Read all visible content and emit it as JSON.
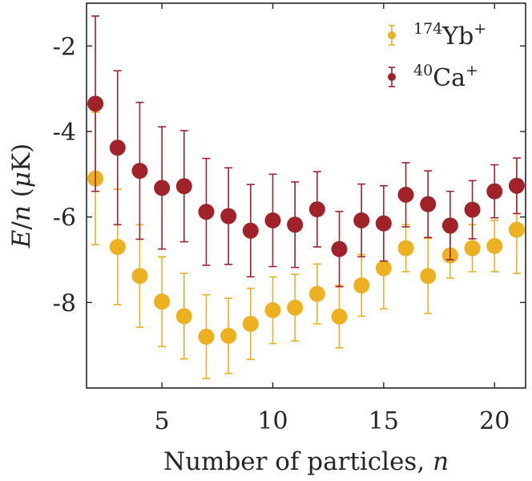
{
  "chart_data": {
    "type": "scatter",
    "title": "",
    "xlabel": "Number of particles, ",
    "xlabel_var": "n",
    "ylabel_parts": [
      "E",
      "/",
      "n",
      " (",
      "μ",
      "K)"
    ],
    "xlim": [
      1.6,
      21.4
    ],
    "ylim": [
      -10,
      -1
    ],
    "xticks": [
      5,
      10,
      15,
      20
    ],
    "xtick_labels": [
      "5",
      "10",
      "15",
      "20"
    ],
    "yticks": [
      -8,
      -6,
      -4,
      -2
    ],
    "ytick_labels": [
      "-8",
      "-6",
      "-4",
      "-2"
    ],
    "grid": false,
    "legend_position": "top-right",
    "series": [
      {
        "name": "174Yb+",
        "label_sup": "174",
        "label_main": "Yb",
        "label_charge": "+",
        "color": "#EDB120",
        "x": [
          2,
          3,
          4,
          5,
          6,
          7,
          8,
          9,
          10,
          11,
          12,
          13,
          14,
          15,
          16,
          17,
          18,
          19,
          20,
          21
        ],
        "y": [
          -5.1,
          -6.7,
          -7.38,
          -7.98,
          -8.32,
          -8.8,
          -8.78,
          -8.5,
          -8.18,
          -8.12,
          -7.8,
          -8.33,
          -7.6,
          -7.2,
          -6.73,
          -7.38,
          -6.9,
          -6.73,
          -6.68,
          -6.3
        ],
        "err": [
          1.55,
          1.35,
          1.2,
          1.05,
          1.0,
          0.98,
          0.88,
          0.83,
          0.78,
          0.78,
          0.7,
          0.73,
          0.72,
          0.95,
          0.55,
          0.88,
          0.53,
          0.55,
          0.6,
          1.02
        ]
      },
      {
        "name": "40Ca+",
        "label_sup": "40",
        "label_main": "Ca",
        "label_charge": "+",
        "color": "#A2222A",
        "x": [
          2,
          3,
          4,
          5,
          6,
          7,
          8,
          9,
          10,
          11,
          12,
          13,
          14,
          15,
          16,
          17,
          18,
          19,
          20,
          21
        ],
        "y": [
          -3.35,
          -4.38,
          -4.92,
          -5.32,
          -5.28,
          -5.88,
          -5.98,
          -6.32,
          -6.08,
          -6.18,
          -5.82,
          -6.75,
          -6.08,
          -6.15,
          -5.48,
          -5.7,
          -6.2,
          -5.83,
          -5.4,
          -5.27
        ],
        "err": [
          2.05,
          1.8,
          1.6,
          1.43,
          1.3,
          1.25,
          1.13,
          1.08,
          1.08,
          1.0,
          0.88,
          0.88,
          0.85,
          0.88,
          0.75,
          0.78,
          0.8,
          0.68,
          0.62,
          0.65
        ]
      }
    ]
  }
}
